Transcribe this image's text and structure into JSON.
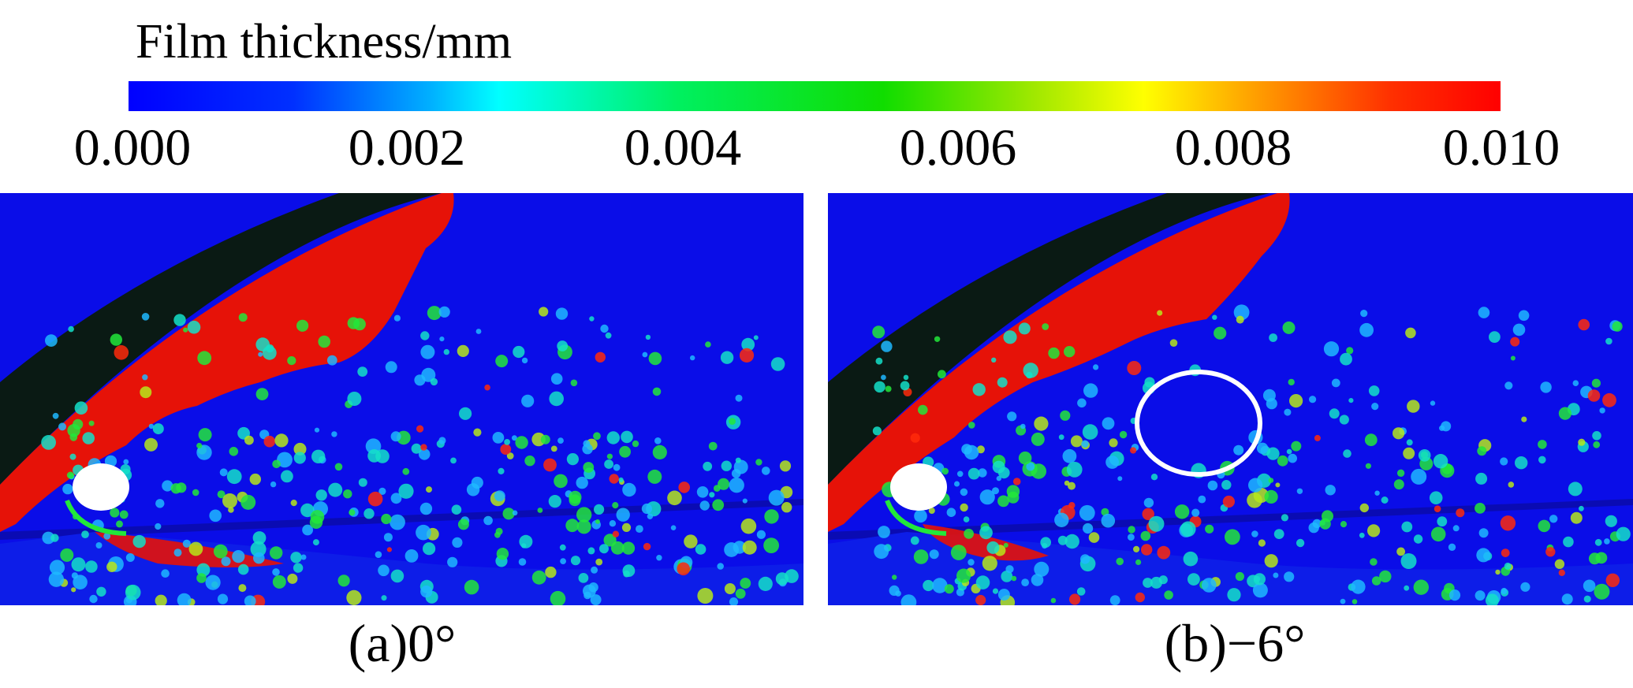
{
  "colorbar": {
    "title": "Film thickness/mm",
    "ticks": [
      "0.000",
      "0.002",
      "0.004",
      "0.006",
      "0.008",
      "0.010"
    ],
    "colors": [
      "#0000ff",
      "#00b0ff",
      "#00ffff",
      "#00e000",
      "#10dd00",
      "#ffff00",
      "#ff8000",
      "#ff0000"
    ]
  },
  "panels": [
    {
      "caption": "(a)0°"
    },
    {
      "caption": "(b)−6°"
    }
  ],
  "palette": {
    "background": "#0a0de8",
    "film_red": "#e61208",
    "shadow": "#0a1a14",
    "droplet_colors": [
      "#1fb8ff",
      "#14e0c8",
      "#22e83a",
      "#b6e81a",
      "#ff2a0a"
    ],
    "highlight_circle": "#ffffff"
  }
}
